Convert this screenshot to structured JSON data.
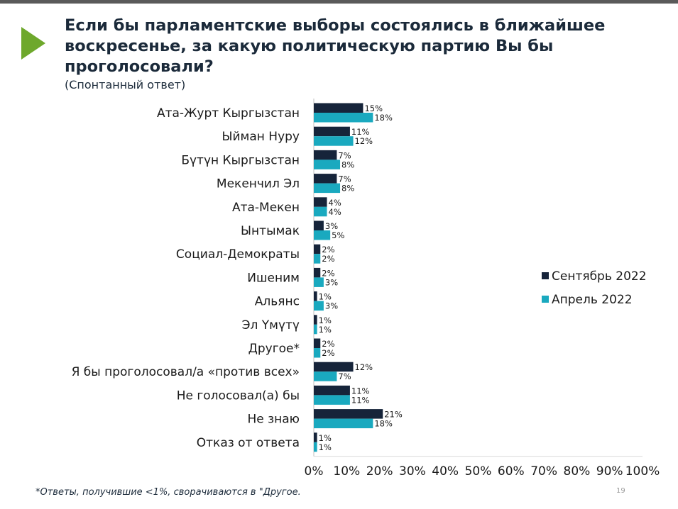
{
  "slide": {
    "title": "Если бы парламентские выборы состоялись в ближайшее\nвоскресенье, за какую политическую партию Вы бы\nпроголосовали?",
    "subtitle": "(Спонтанный ответ)",
    "footnote": "*Ответы, получившие <1%, сворачиваются в \"Другое.",
    "page_number": "19",
    "arrow_color": "#6ea82c"
  },
  "chart_data": {
    "type": "bar",
    "orientation": "horizontal",
    "categories": [
      "Ата-Журт Кыргызстан",
      "Ыйман Нуру",
      "Бүтүн Кыргызстан",
      "Мекенчил Эл",
      "Ата-Мекен",
      "Ынтымак",
      "Социал-Демократы",
      "Ишеним",
      "Альянс",
      "Эл Үмүтү",
      "Другое*",
      "Я бы проголосовал/а «против всех»",
      "Не голосовал(а) бы",
      "Не знаю",
      "Отказ от ответа"
    ],
    "series": [
      {
        "name": "Сентябрь 2022",
        "color": "#16243a",
        "values": [
          15,
          11,
          7,
          7,
          4,
          3,
          2,
          2,
          1,
          1,
          2,
          12,
          11,
          21,
          1
        ],
        "labels": [
          "15%",
          "11%",
          "7%",
          "7%",
          "4%",
          "3%",
          "2%",
          "2%",
          "1%",
          "1%",
          "2%",
          "12%",
          "11%",
          "21%",
          "1%"
        ]
      },
      {
        "name": "Апрель 2022",
        "color": "#1aa9bf",
        "values": [
          18,
          12,
          8,
          8,
          4,
          5,
          2,
          3,
          3,
          1,
          2,
          7,
          11,
          18,
          1
        ],
        "labels": [
          "18%",
          "12%",
          "8%",
          "8%",
          "4%",
          "5%",
          "2%",
          "3%",
          "3%",
          "1%",
          "2%",
          "7%",
          "11%",
          "18%",
          "1%"
        ]
      }
    ],
    "xlim": [
      0,
      100
    ],
    "xticks": [
      "0%",
      "10%",
      "20%",
      "30%",
      "40%",
      "50%",
      "60%",
      "70%",
      "80%",
      "90%",
      "100%"
    ],
    "legend_position": "right"
  }
}
